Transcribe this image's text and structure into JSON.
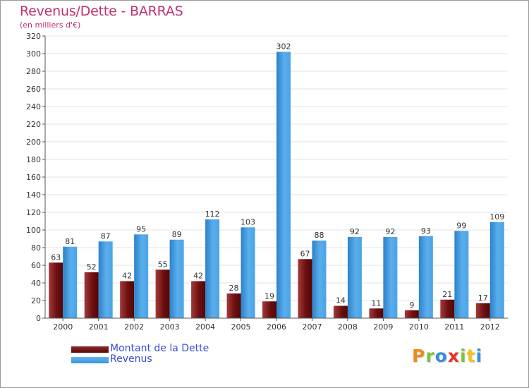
{
  "title": "Revenus/Dette - BARRAS",
  "subtitle": "(en milliers d'€)",
  "colors": {
    "debt": "#6e0f10",
    "revenue": "#3d9ee5",
    "title": "#c0306f",
    "legend_text": "#3a4bd8"
  },
  "legend": {
    "debt_label": "Montant de la Dette",
    "revenue_label": "Revenus"
  },
  "logo": {
    "text": "Proxiti"
  },
  "chart_data": {
    "type": "bar",
    "title": "Revenus/Dette - BARRAS",
    "subtitle": "(en milliers d'€)",
    "xlabel": "",
    "ylabel": "",
    "ylim": [
      0,
      320
    ],
    "yticks": [
      0,
      20,
      40,
      60,
      80,
      100,
      120,
      140,
      160,
      180,
      200,
      220,
      240,
      260,
      280,
      300,
      320
    ],
    "grid": true,
    "categories": [
      "2000",
      "2001",
      "2002",
      "2003",
      "2004",
      "2005",
      "2006",
      "2007",
      "2008",
      "2009",
      "2010",
      "2011",
      "2012"
    ],
    "series": [
      {
        "name": "Montant de la Dette",
        "values": [
          63,
          52,
          42,
          55,
          42,
          28,
          19,
          67,
          14,
          11,
          9,
          21,
          17
        ]
      },
      {
        "name": "Revenus",
        "values": [
          81,
          87,
          95,
          89,
          112,
          103,
          302,
          88,
          92,
          92,
          93,
          99,
          109
        ]
      }
    ]
  }
}
